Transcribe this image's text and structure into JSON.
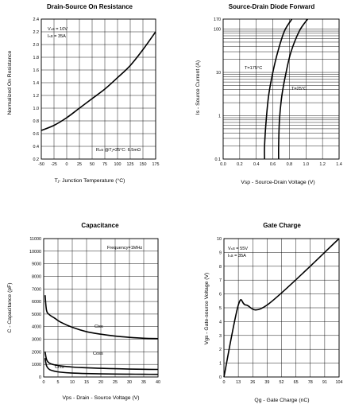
{
  "chart_data": [
    {
      "id": "c1",
      "type": "line",
      "title": "Drain-Source On Resistance",
      "xlabel": "Tⱼ- Junction Temperature (°C)",
      "ylabel": "Normalized On Resistance",
      "xlim": [
        -50,
        175
      ],
      "ylim": [
        0.2,
        2.4
      ],
      "x_ticks": [
        -50,
        -25,
        0,
        25,
        50,
        75,
        100,
        125,
        150,
        175
      ],
      "y_ticks": [
        0.2,
        0.4,
        0.6,
        0.8,
        1.0,
        1.2,
        1.4,
        1.6,
        1.8,
        2.0,
        2.2,
        2.4
      ],
      "annotations": [
        "Vₙs = 10V",
        "Iₙs = 35A",
        "Rₙs @Tⱼ=25°C: 6.5mΩ"
      ],
      "series": [
        {
          "x": [
            -50,
            -25,
            0,
            25,
            50,
            75,
            100,
            125,
            150,
            175
          ],
          "y": [
            0.65,
            0.73,
            0.85,
            1.0,
            1.15,
            1.3,
            1.48,
            1.67,
            1.92,
            2.2
          ]
        }
      ]
    },
    {
      "id": "c2",
      "type": "line",
      "title": "Source-Drain Diode Forward",
      "xlabel": "Vsp - Source-Drain Voltage (V)",
      "ylabel": "Is - Source Current (A)",
      "xlim": [
        0.0,
        1.4
      ],
      "ylim": [
        0.1,
        170
      ],
      "y_scale": "log",
      "x_ticks": [
        0.0,
        0.2,
        0.4,
        0.6,
        0.8,
        1.0,
        1.2,
        1.4
      ],
      "y_ticks": [
        0.1,
        1,
        10,
        100,
        170
      ],
      "annotations": [
        "T=175°C",
        "T=25°C"
      ],
      "series": [
        {
          "name": "T=175°C",
          "x": [
            0.5,
            0.5,
            0.52,
            0.55,
            0.6,
            0.66,
            0.74,
            0.83
          ],
          "y": [
            0.1,
            0.2,
            0.8,
            3,
            10,
            30,
            90,
            170
          ]
        },
        {
          "name": "T=25°C",
          "x": [
            0.67,
            0.67,
            0.68,
            0.71,
            0.76,
            0.82,
            0.92,
            1.02
          ],
          "y": [
            0.1,
            0.2,
            0.8,
            3,
            10,
            30,
            90,
            170
          ]
        }
      ]
    },
    {
      "id": "c3",
      "type": "line",
      "title": "Capacitance",
      "xlabel": "Vps - Drain - Source Voltage (V)",
      "ylabel": "C - Capacitance (pF)",
      "xlim": [
        0,
        40
      ],
      "ylim": [
        0,
        11000
      ],
      "x_ticks": [
        0,
        5,
        10,
        15,
        20,
        25,
        30,
        35,
        40
      ],
      "y_ticks": [
        0,
        1000,
        2000,
        3000,
        4000,
        5000,
        6000,
        7000,
        8000,
        9000,
        10000,
        11000
      ],
      "annotations": [
        "Frequency=1MHz",
        "Ciss",
        "Coss",
        "Crss"
      ],
      "series": [
        {
          "name": "Ciss",
          "x": [
            0.5,
            1,
            2,
            4,
            6,
            10,
            15,
            20,
            25,
            30,
            35,
            40
          ],
          "y": [
            6500,
            5300,
            4950,
            4650,
            4350,
            3950,
            3600,
            3400,
            3250,
            3150,
            3080,
            3050
          ]
        },
        {
          "name": "Coss",
          "x": [
            0.5,
            1,
            2,
            4,
            6,
            10,
            15,
            20,
            25,
            30,
            35,
            40
          ],
          "y": [
            2000,
            1400,
            1100,
            950,
            880,
            790,
            730,
            690,
            660,
            630,
            610,
            600
          ]
        },
        {
          "name": "Crss",
          "x": [
            0.5,
            1,
            2,
            4,
            6,
            10,
            15,
            20,
            25,
            30,
            35,
            40
          ],
          "y": [
            1500,
            900,
            600,
            450,
            380,
            310,
            270,
            250,
            235,
            225,
            215,
            210
          ]
        }
      ]
    },
    {
      "id": "c4",
      "type": "line",
      "title": "Gate Charge",
      "xlabel": "Qg - Gate Charge (nC)",
      "ylabel": "Vgs - Gate-source Voltage (V)",
      "xlim": [
        0,
        104
      ],
      "ylim": [
        0,
        10
      ],
      "x_ticks": [
        0,
        13,
        26,
        39,
        52,
        65,
        78,
        91,
        104
      ],
      "y_ticks": [
        0,
        1,
        2,
        3,
        4,
        5,
        6,
        7,
        8,
        9,
        10
      ],
      "annotations": [
        "Vₙs = 55V",
        "Iₙs = 35A"
      ],
      "series": [
        {
          "x": [
            0,
            13,
            20,
            39,
            104
          ],
          "y": [
            0,
            5.2,
            5.2,
            5.2,
            10
          ]
        }
      ]
    }
  ]
}
